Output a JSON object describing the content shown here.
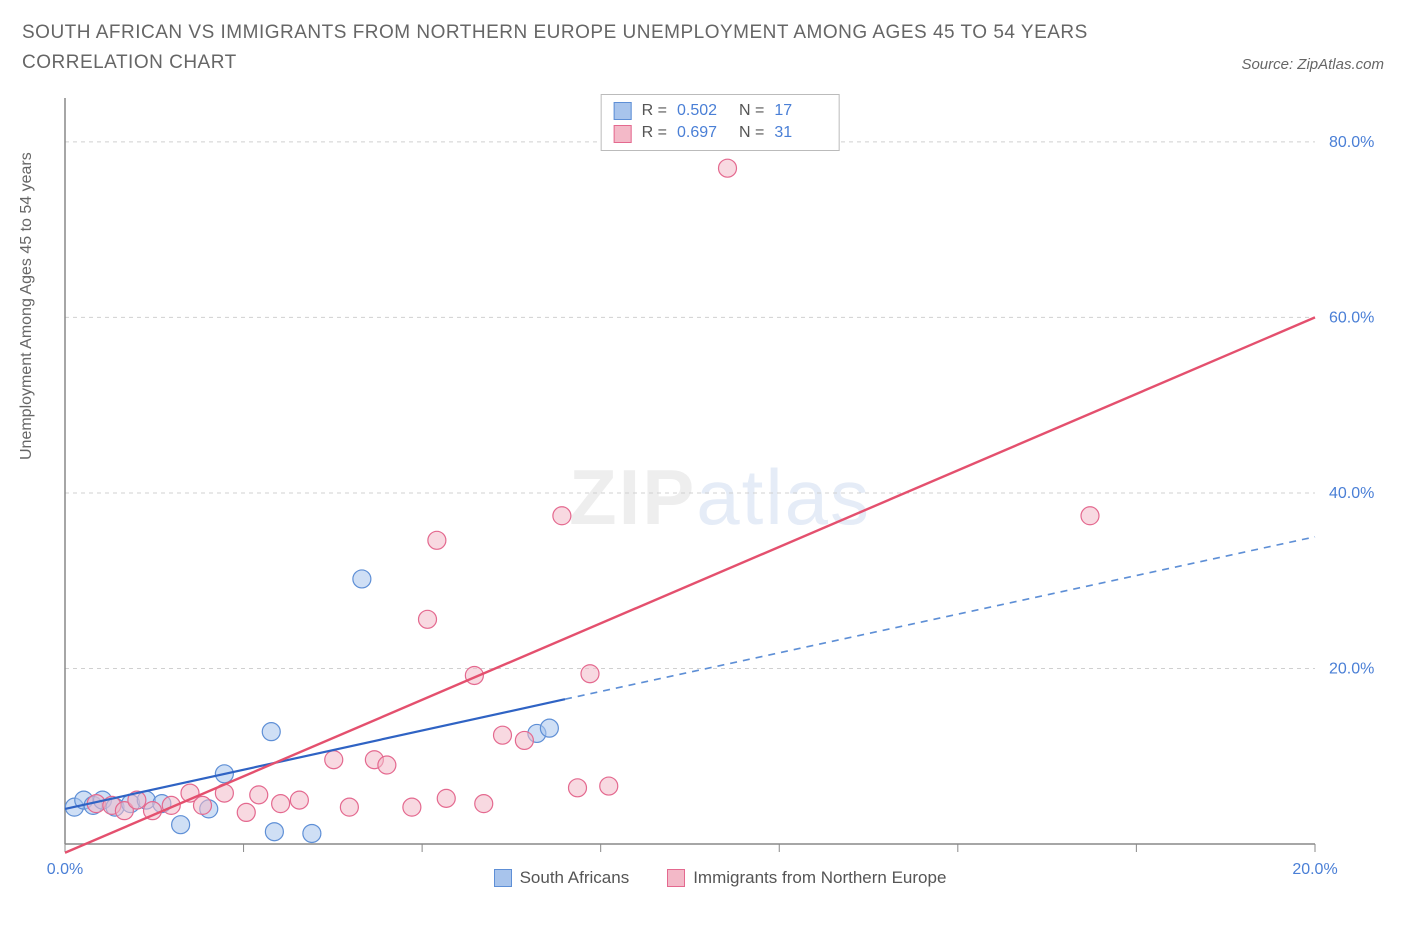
{
  "title": "SOUTH AFRICAN VS IMMIGRANTS FROM NORTHERN EUROPE UNEMPLOYMENT AMONG AGES 45 TO 54 YEARS CORRELATION CHART",
  "source_label": "Source: ZipAtlas.com",
  "y_axis_label": "Unemployment Among Ages 45 to 54 years",
  "watermark": {
    "part1": "ZIP",
    "part2": "atlas"
  },
  "chart": {
    "type": "scatter",
    "background_color": "#ffffff",
    "grid_color": "#d0d0d0",
    "axis_color": "#888888",
    "tick_label_color": "#4a7fd6",
    "xlim": [
      0,
      20
    ],
    "ylim": [
      0,
      85
    ],
    "x_ticks": [
      0,
      2.857,
      5.714,
      8.571,
      11.428,
      14.285,
      17.142,
      20
    ],
    "x_tick_labels": {
      "0": "0.0%",
      "20": "20.0%"
    },
    "y_ticks": [
      20,
      40,
      60,
      80
    ],
    "y_tick_labels": {
      "20": "20.0%",
      "40": "40.0%",
      "60": "60.0%",
      "80": "80.0%"
    },
    "marker_radius": 9,
    "marker_opacity": 0.55,
    "series": [
      {
        "id": "south_africans",
        "label": "South Africans",
        "color_fill": "#a8c4ec",
        "color_stroke": "#5e8fd6",
        "R": "0.502",
        "N": "17",
        "trend": {
          "solid": {
            "x1": 0,
            "y1": 4.0,
            "x2": 8.0,
            "y2": 16.5,
            "color": "#2f63c4",
            "width": 2.2
          },
          "dashed": {
            "x1": 8.0,
            "y1": 16.5,
            "x2": 20.0,
            "y2": 35.0,
            "color": "#5e8fd6",
            "width": 1.6,
            "dash": "7 6"
          }
        },
        "points": [
          {
            "x": 0.15,
            "y": 4.2
          },
          {
            "x": 0.3,
            "y": 5.0
          },
          {
            "x": 0.45,
            "y": 4.4
          },
          {
            "x": 0.6,
            "y": 5.0
          },
          {
            "x": 0.8,
            "y": 4.2
          },
          {
            "x": 1.05,
            "y": 4.6
          },
          {
            "x": 1.3,
            "y": 5.0
          },
          {
            "x": 1.55,
            "y": 4.6
          },
          {
            "x": 1.85,
            "y": 2.2
          },
          {
            "x": 2.3,
            "y": 4.0
          },
          {
            "x": 2.55,
            "y": 8.0
          },
          {
            "x": 3.3,
            "y": 12.8
          },
          {
            "x": 3.35,
            "y": 1.4
          },
          {
            "x": 3.95,
            "y": 1.2
          },
          {
            "x": 4.75,
            "y": 30.2
          },
          {
            "x": 7.55,
            "y": 12.6
          },
          {
            "x": 7.75,
            "y": 13.2
          }
        ]
      },
      {
        "id": "northern_europe",
        "label": "Immigrants from Northern Europe",
        "color_fill": "#f3b9c8",
        "color_stroke": "#e4698f",
        "R": "0.697",
        "N": "31",
        "trend": {
          "solid": {
            "x1": 0.0,
            "y1": -1.0,
            "x2": 20.0,
            "y2": 60.0,
            "color": "#e4506e",
            "width": 2.4
          }
        },
        "points": [
          {
            "x": 0.5,
            "y": 4.6
          },
          {
            "x": 0.75,
            "y": 4.4
          },
          {
            "x": 0.95,
            "y": 3.8
          },
          {
            "x": 1.15,
            "y": 5.0
          },
          {
            "x": 1.4,
            "y": 3.8
          },
          {
            "x": 1.7,
            "y": 4.4
          },
          {
            "x": 2.0,
            "y": 5.8
          },
          {
            "x": 2.2,
            "y": 4.4
          },
          {
            "x": 2.55,
            "y": 5.8
          },
          {
            "x": 2.9,
            "y": 3.6
          },
          {
            "x": 3.1,
            "y": 5.6
          },
          {
            "x": 3.45,
            "y": 4.6
          },
          {
            "x": 3.75,
            "y": 5.0
          },
          {
            "x": 4.3,
            "y": 9.6
          },
          {
            "x": 4.55,
            "y": 4.2
          },
          {
            "x": 4.95,
            "y": 9.6
          },
          {
            "x": 5.15,
            "y": 9.0
          },
          {
            "x": 5.55,
            "y": 4.2
          },
          {
            "x": 5.8,
            "y": 25.6
          },
          {
            "x": 5.95,
            "y": 34.6
          },
          {
            "x": 6.55,
            "y": 19.2
          },
          {
            "x": 6.7,
            "y": 4.6
          },
          {
            "x": 7.0,
            "y": 12.4
          },
          {
            "x": 7.35,
            "y": 11.8
          },
          {
            "x": 7.95,
            "y": 37.4
          },
          {
            "x": 8.2,
            "y": 6.4
          },
          {
            "x": 8.4,
            "y": 19.4
          },
          {
            "x": 8.7,
            "y": 6.6
          },
          {
            "x": 10.6,
            "y": 77.0
          },
          {
            "x": 16.4,
            "y": 37.4
          },
          {
            "x": 6.1,
            "y": 5.2
          }
        ]
      }
    ]
  },
  "legend_top": {
    "r_label": "R =",
    "n_label": "N ="
  }
}
